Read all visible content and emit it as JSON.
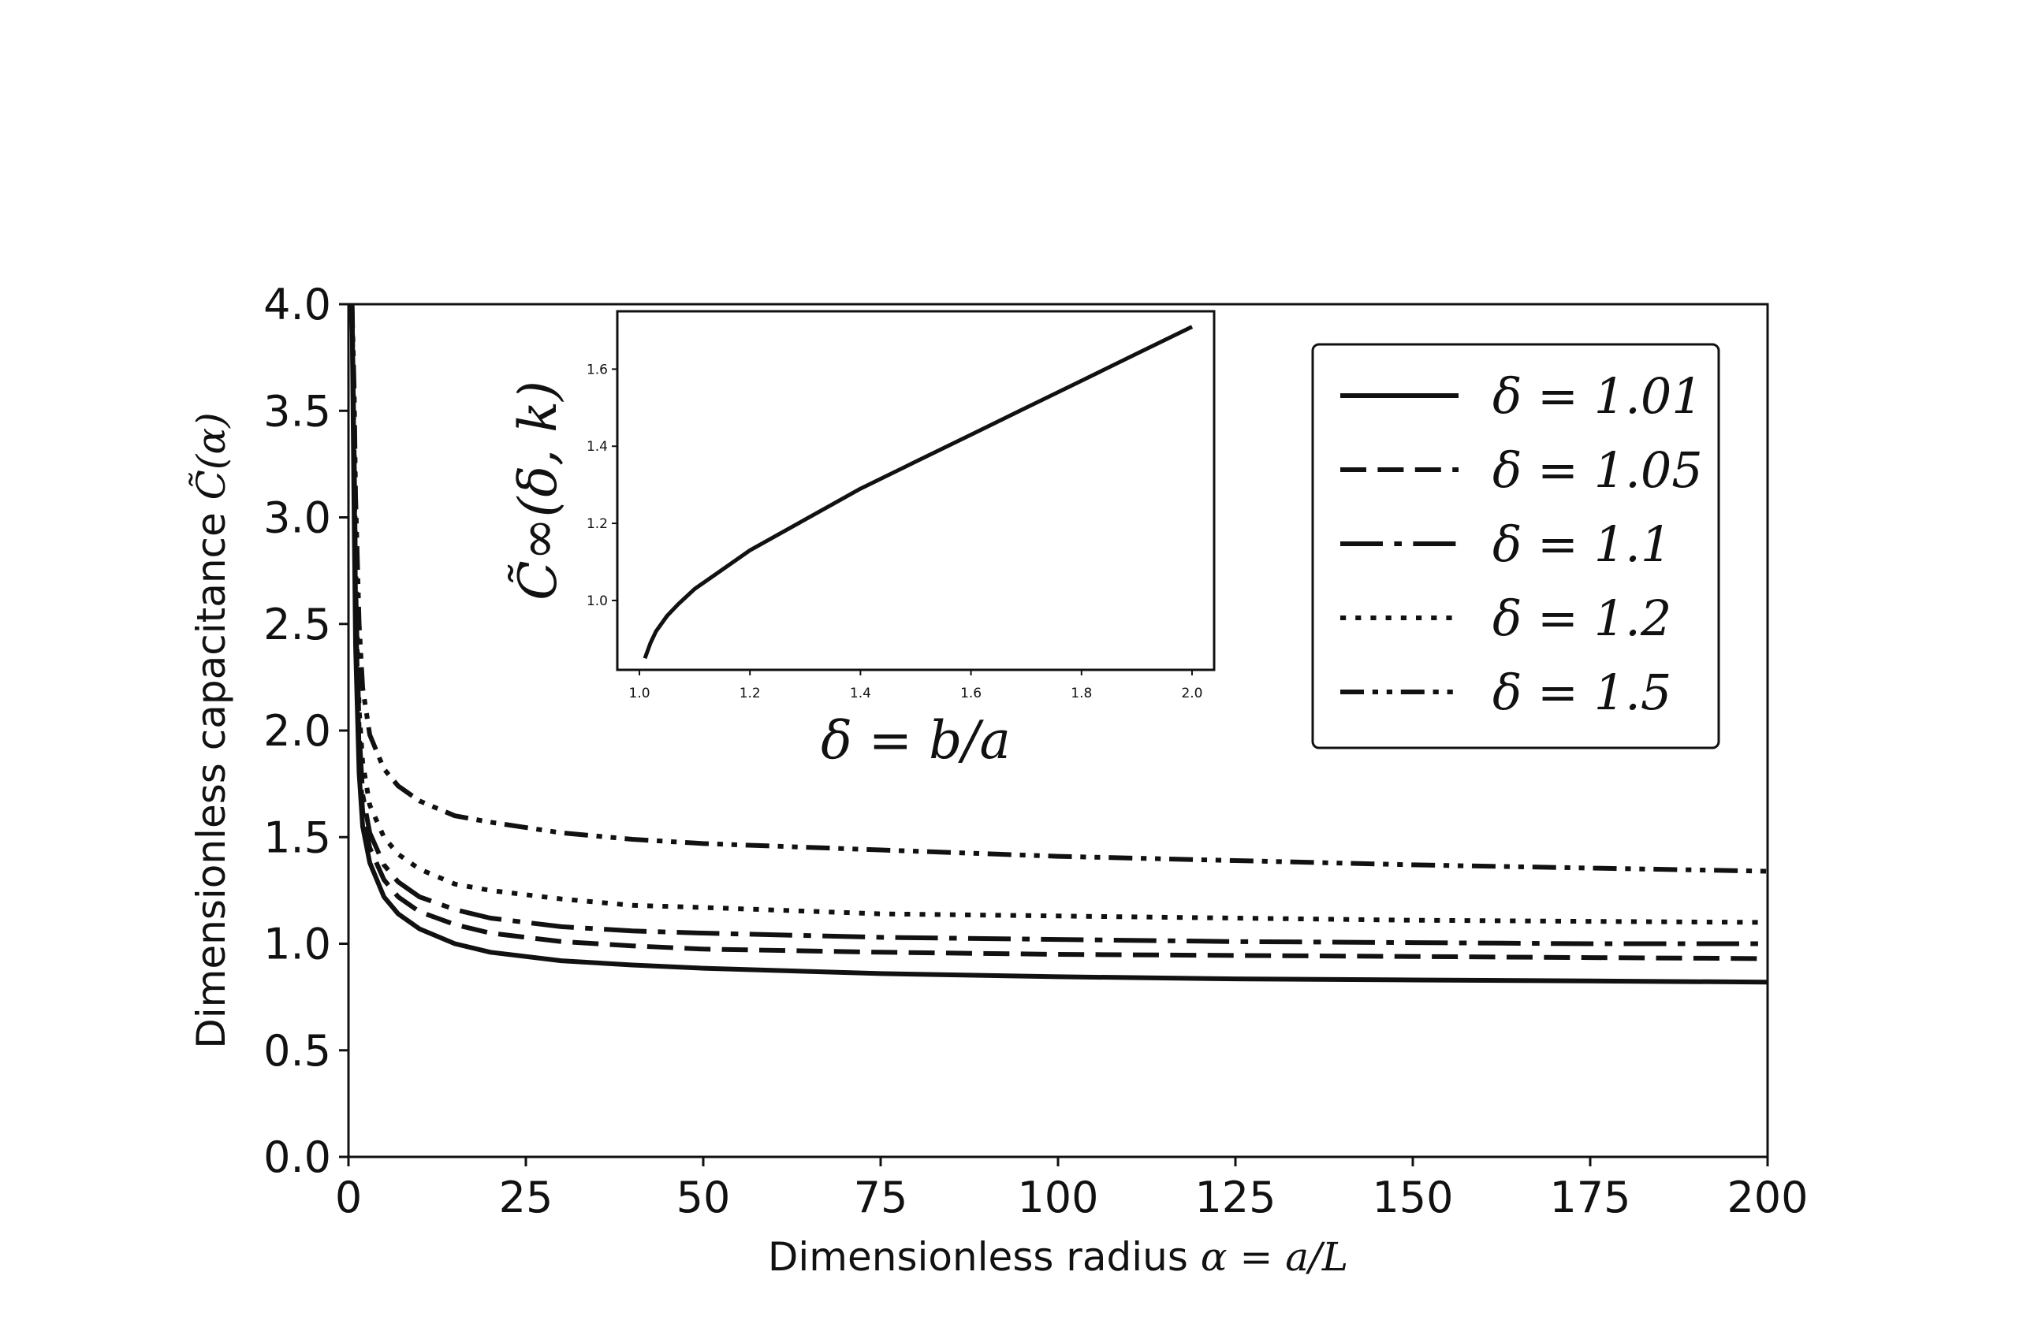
{
  "chart_data": [
    {
      "type": "line",
      "title": "",
      "xlabel": {
        "prefix": "Dimensionless radius ",
        "math": "α = a/L"
      },
      "ylabel": {
        "prefix": "Dimensionless capacitance ",
        "math": "C̃(α)"
      },
      "xlim": [
        0,
        200
      ],
      "ylim": [
        0,
        4.0
      ],
      "xticks": [
        0,
        25,
        50,
        75,
        100,
        125,
        150,
        175,
        200
      ],
      "xtick_labels": [
        "0",
        "25",
        "50",
        "75",
        "100",
        "125",
        "150",
        "175",
        "200"
      ],
      "yticks": [
        0,
        0.5,
        1.0,
        1.5,
        2.0,
        2.5,
        3.0,
        3.5,
        4.0
      ],
      "ytick_labels": [
        "0.0",
        "0.5",
        "1.0",
        "1.5",
        "2.0",
        "2.5",
        "3.0",
        "3.5",
        "4.0"
      ],
      "grid": false,
      "legend_position": "top-right",
      "series": [
        {
          "name": "δ = 1.01",
          "dash": "solid",
          "x": [
            0.5,
            0.8,
            1,
            1.5,
            2,
            3,
            5,
            7,
            10,
            15,
            20,
            30,
            40,
            50,
            75,
            100,
            125,
            150,
            175,
            200
          ],
          "y": [
            4.0,
            3.0,
            2.4,
            1.8,
            1.55,
            1.38,
            1.22,
            1.14,
            1.07,
            1.0,
            0.96,
            0.92,
            0.9,
            0.885,
            0.86,
            0.845,
            0.835,
            0.83,
            0.825,
            0.82
          ]
        },
        {
          "name": "δ = 1.05",
          "dash": "dashed",
          "x": [
            0.5,
            0.8,
            1,
            1.5,
            2,
            3,
            5,
            7,
            10,
            15,
            20,
            30,
            40,
            50,
            75,
            100,
            125,
            150,
            175,
            200
          ],
          "y": [
            4.0,
            3.2,
            2.6,
            1.9,
            1.62,
            1.45,
            1.3,
            1.22,
            1.15,
            1.09,
            1.05,
            1.01,
            0.99,
            0.975,
            0.96,
            0.95,
            0.945,
            0.94,
            0.935,
            0.93
          ]
        },
        {
          "name": "δ = 1.1",
          "dash": "dashdot",
          "x": [
            0.5,
            0.8,
            1,
            1.5,
            2,
            3,
            5,
            7,
            10,
            15,
            20,
            30,
            40,
            50,
            75,
            100,
            125,
            150,
            175,
            200
          ],
          "y": [
            4.0,
            3.3,
            2.7,
            2.0,
            1.7,
            1.52,
            1.37,
            1.29,
            1.22,
            1.16,
            1.12,
            1.08,
            1.06,
            1.05,
            1.03,
            1.02,
            1.01,
            1.005,
            1.0,
            1.0
          ]
        },
        {
          "name": "δ = 1.2",
          "dash": "dotted",
          "x": [
            0.5,
            0.8,
            1,
            1.5,
            2,
            3,
            5,
            7,
            10,
            15,
            20,
            30,
            40,
            50,
            75,
            100,
            125,
            150,
            175,
            200
          ],
          "y": [
            4.0,
            3.4,
            2.8,
            2.1,
            1.85,
            1.65,
            1.5,
            1.42,
            1.35,
            1.28,
            1.25,
            1.21,
            1.18,
            1.17,
            1.14,
            1.13,
            1.12,
            1.11,
            1.105,
            1.1
          ]
        },
        {
          "name": "δ = 1.5",
          "dash": "dashdotdot",
          "x": [
            0.5,
            0.8,
            1,
            1.5,
            2,
            3,
            5,
            7,
            10,
            15,
            20,
            30,
            40,
            50,
            75,
            100,
            125,
            150,
            175,
            200
          ],
          "y": [
            4.0,
            3.6,
            3.1,
            2.5,
            2.2,
            1.98,
            1.82,
            1.74,
            1.67,
            1.6,
            1.57,
            1.52,
            1.49,
            1.47,
            1.44,
            1.41,
            1.39,
            1.37,
            1.355,
            1.34
          ]
        }
      ]
    },
    {
      "type": "line",
      "title": "",
      "xlabel": {
        "prefix": "",
        "math": "δ = b/a"
      },
      "ylabel": {
        "prefix": "",
        "math": "C̃∞(δ, k)"
      },
      "xlim": [
        0.96,
        2.04
      ],
      "ylim": [
        0.82,
        1.75
      ],
      "xticks": [
        1.0,
        1.2,
        1.4,
        1.6,
        1.8,
        2.0
      ],
      "xtick_labels": [
        "1.0",
        "1.2",
        "1.4",
        "1.6",
        "1.8",
        "2.0"
      ],
      "yticks": [
        1.0,
        1.2,
        1.4,
        1.6
      ],
      "ytick_labels": [
        "1.0",
        "1.2",
        "1.4",
        "1.6"
      ],
      "grid": false,
      "series": [
        {
          "name": "",
          "dash": "solid",
          "x": [
            1.01,
            1.02,
            1.03,
            1.05,
            1.07,
            1.1,
            1.15,
            1.2,
            1.3,
            1.4,
            1.5,
            1.6,
            1.7,
            1.8,
            1.9,
            2.0
          ],
          "y": [
            0.85,
            0.89,
            0.92,
            0.96,
            0.99,
            1.03,
            1.08,
            1.13,
            1.21,
            1.29,
            1.36,
            1.43,
            1.5,
            1.57,
            1.64,
            1.71
          ]
        }
      ]
    }
  ]
}
